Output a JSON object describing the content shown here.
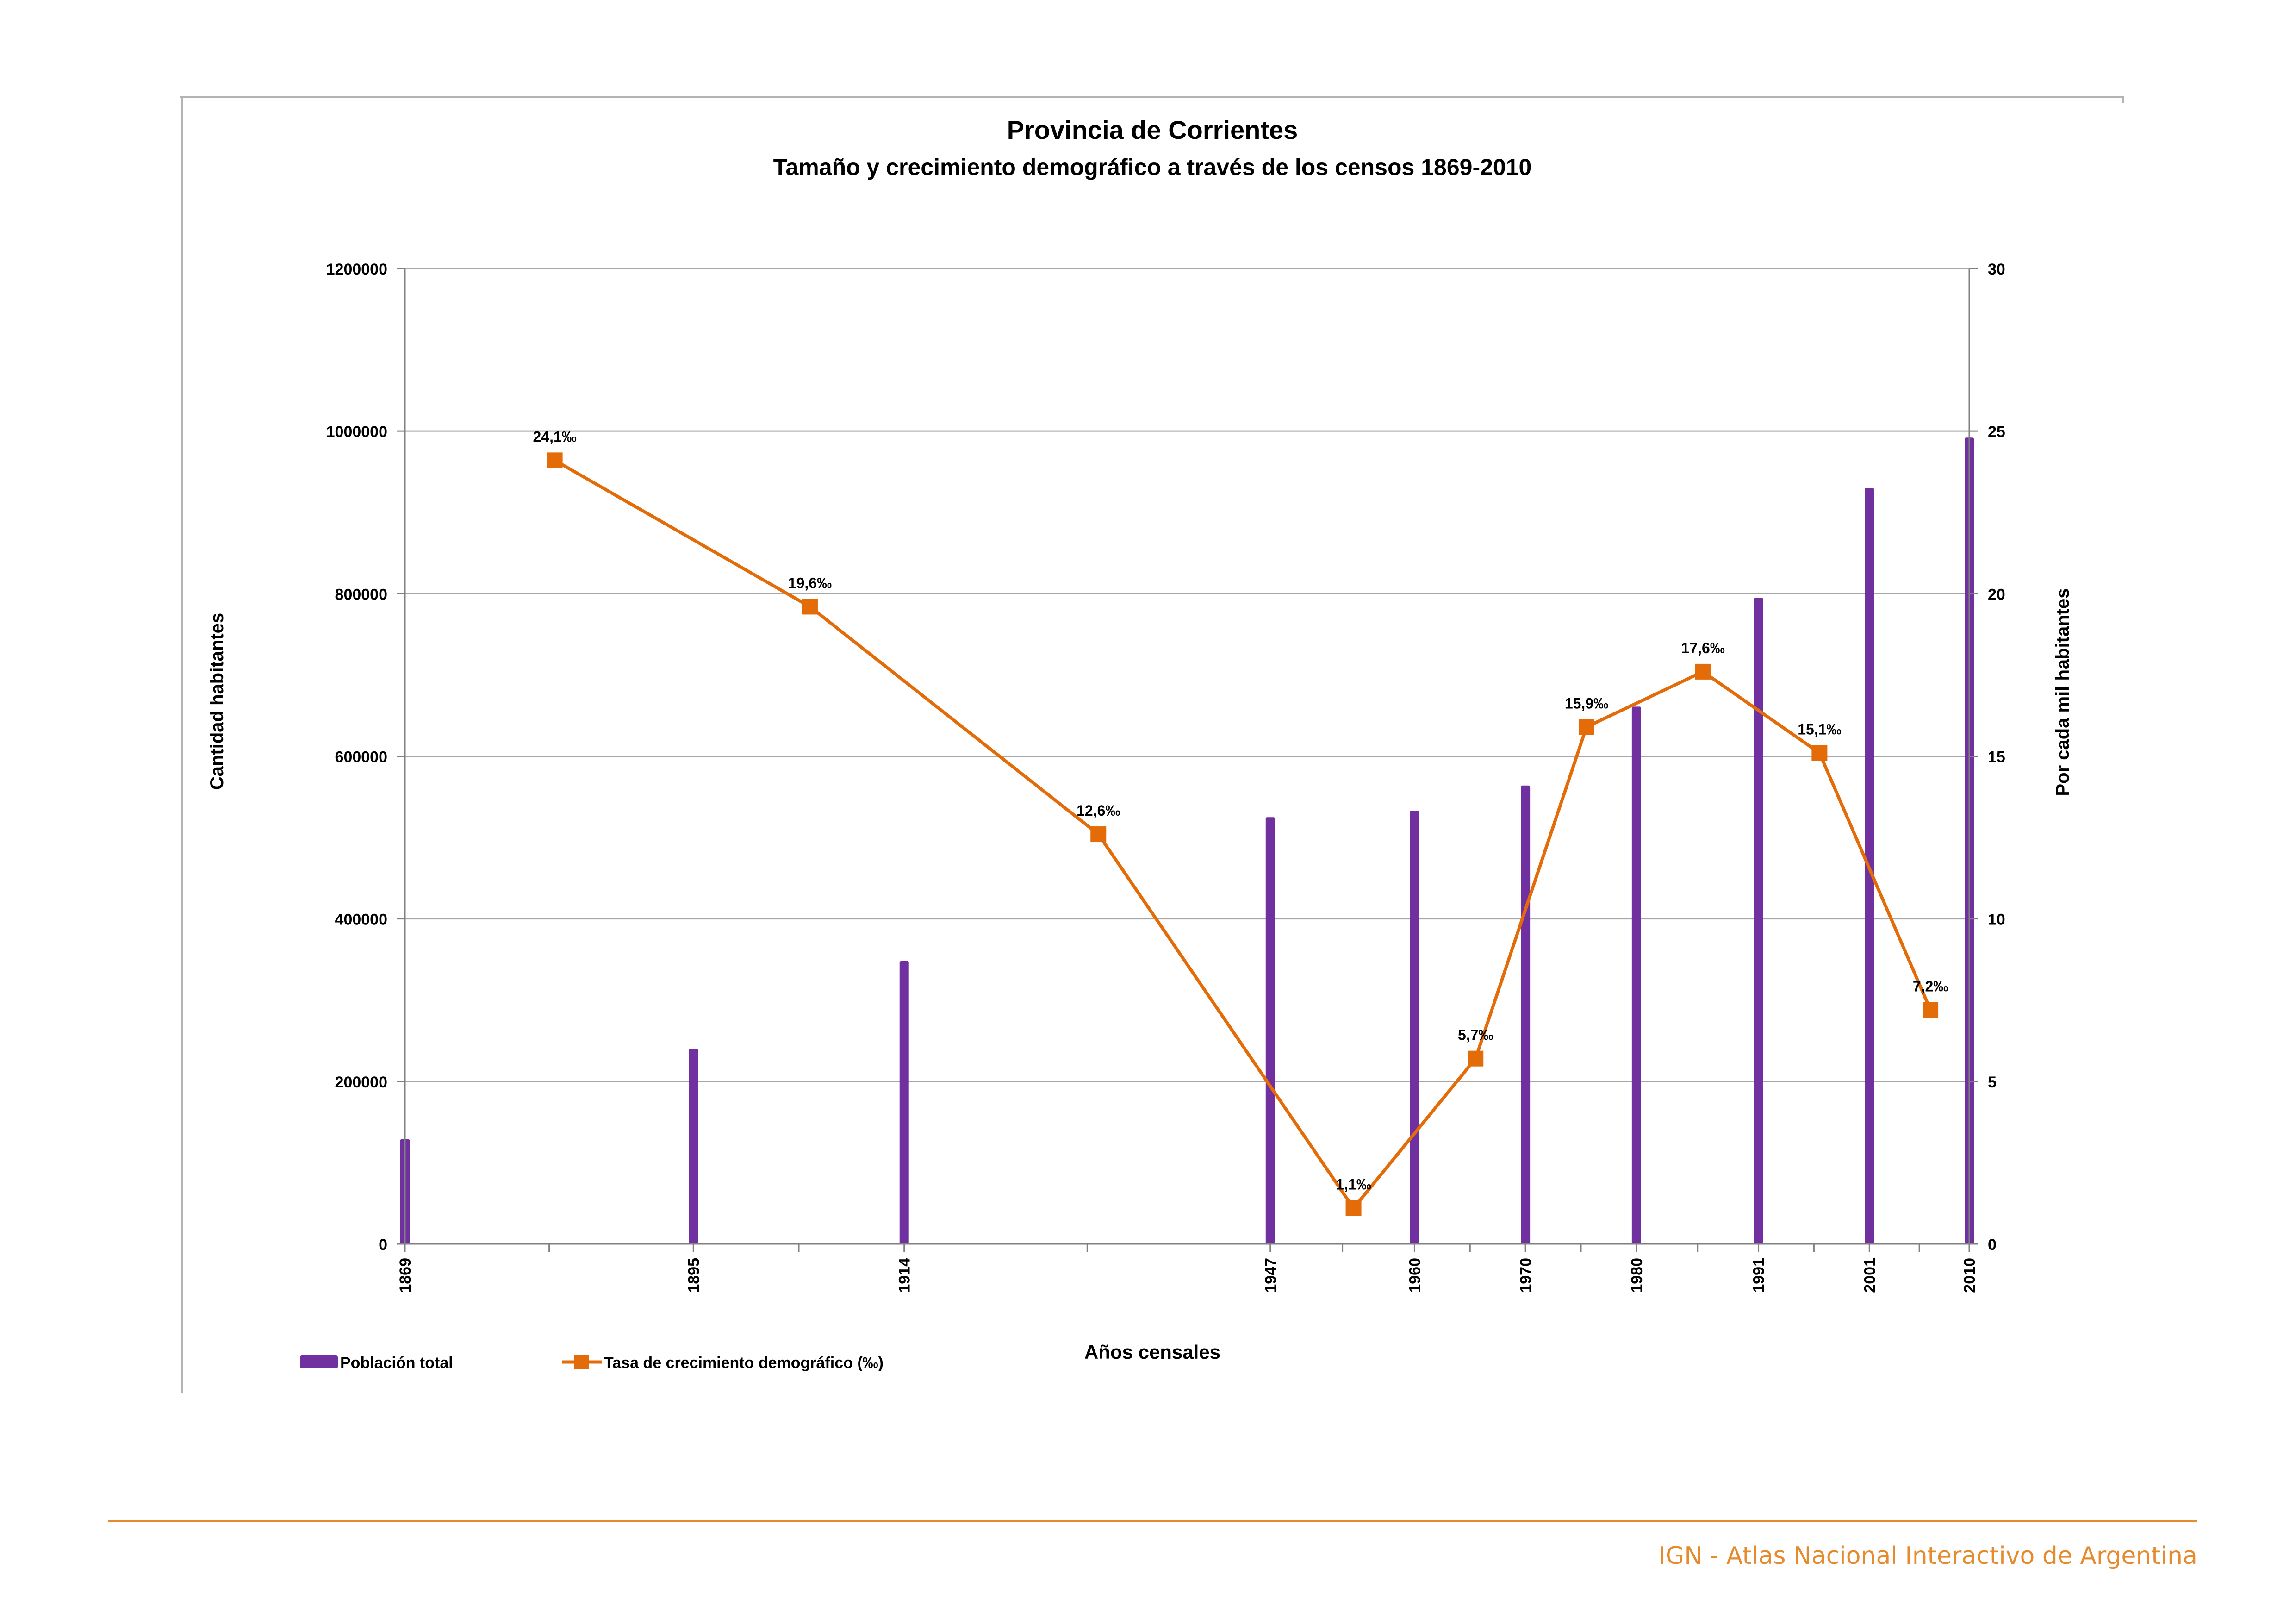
{
  "chart_data": {
    "type": "bar",
    "title": "Provincia de Corrientes",
    "subtitle": "Tamaño y crecimiento demográfico a través de los censos 1869-2010",
    "xlabel": "Años censales",
    "ylabel": "Cantidad habitantes",
    "y2label": "Por cada mil habitantes",
    "xlim": [
      1869,
      2010
    ],
    "ylim": [
      0,
      1200000
    ],
    "y2lim": [
      0,
      30
    ],
    "yticks": [
      0,
      200000,
      400000,
      600000,
      800000,
      1000000,
      1200000
    ],
    "y2ticks": [
      0,
      5,
      10,
      15,
      20,
      25,
      30
    ],
    "x_tick_labels": [
      "1869",
      "1895",
      "1914",
      "1947",
      "1960",
      "1970",
      "1980",
      "1991",
      "2001",
      "2010"
    ],
    "grid": true,
    "legend_position": "bottom-left",
    "series": [
      {
        "name": "Población total",
        "type": "bar",
        "color": "#7030a0",
        "x": [
          1869,
          1895,
          1914,
          1947,
          1960,
          1970,
          1980,
          1991,
          2001,
          2010
        ],
        "values": [
          129000,
          240000,
          348000,
          525000,
          533000,
          564000,
          661000,
          795000,
          930000,
          992000
        ]
      },
      {
        "name": "Tasa de crecimiento demográfico (‰)",
        "type": "line",
        "axis": "right",
        "color": "#e36c09",
        "x": [
          1882.5,
          1905.5,
          1931.5,
          1954.5,
          1965.5,
          1975.5,
          1986,
          1996.5,
          2006.5
        ],
        "values": [
          24.1,
          19.6,
          12.6,
          1.1,
          5.7,
          15.9,
          17.6,
          15.1,
          7.2
        ],
        "labels": [
          "24,1‰",
          "19,6‰",
          "12,6‰",
          "1,1‰",
          "5,7‰",
          "15,9‰",
          "17,6‰",
          "15,1‰",
          "7,2‰"
        ]
      }
    ]
  },
  "footer": {
    "text": "IGN - Atlas Nacional Interactivo de Argentina",
    "color": "#e68a2e"
  }
}
